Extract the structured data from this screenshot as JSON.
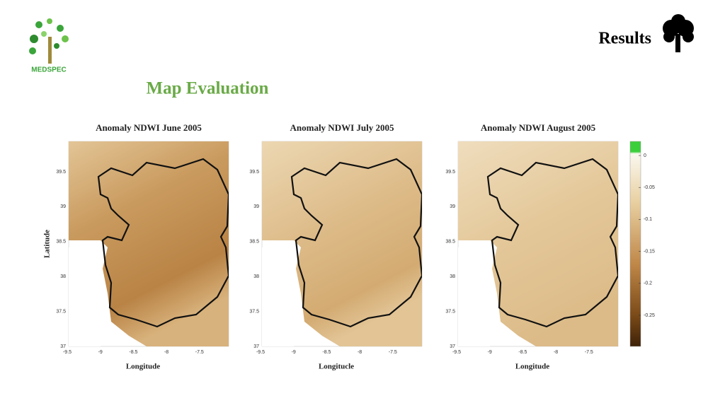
{
  "header": {
    "logo_text": "MEDSPEC",
    "section": "Results"
  },
  "title": "Map Evaluation",
  "axes": {
    "x_ticks": [
      "-9.5",
      "-9",
      "-8.5",
      "-8",
      "-7.5"
    ],
    "y_ticks": [
      "37",
      "37.5",
      "38",
      "38.5",
      "39",
      "39.5"
    ]
  },
  "panels": [
    {
      "title": "Anomaly NDWI June 2005",
      "x_label": "Longitude",
      "y_label": "Latitude"
    },
    {
      "title": "Anomaly NDWI July 2005",
      "x_label": "Longitucle"
    },
    {
      "title": "Anomaly NDWI August 2005",
      "x_label": "Longitude"
    }
  ],
  "colorbar": {
    "ticks": [
      "0",
      "-0.05",
      "-0.1",
      "-0.15",
      "-0.2",
      "-0.25"
    ]
  }
}
